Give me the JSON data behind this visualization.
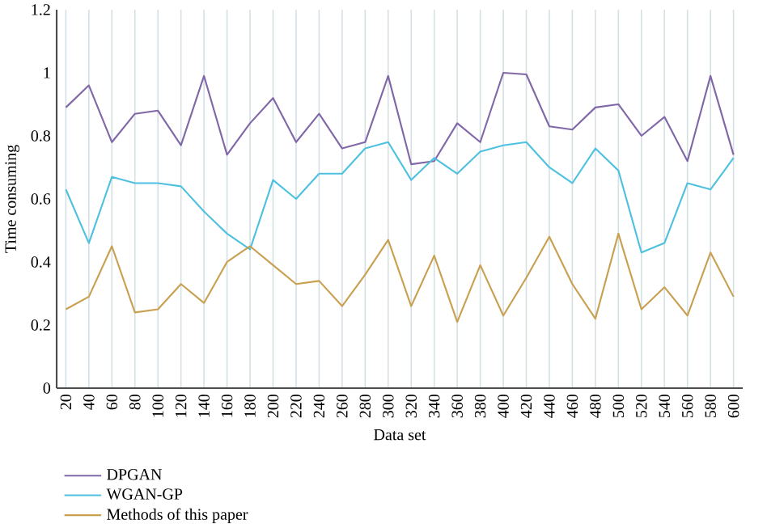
{
  "chart_data": {
    "type": "line",
    "xlabel": "Data set",
    "ylabel": "Time consuming",
    "categories": [
      "20",
      "40",
      "60",
      "80",
      "100",
      "120",
      "140",
      "160",
      "180",
      "200",
      "220",
      "240",
      "260",
      "280",
      "300",
      "320",
      "340",
      "360",
      "380",
      "400",
      "420",
      "440",
      "460",
      "480",
      "500",
      "520",
      "540",
      "560",
      "580",
      "600"
    ],
    "ylim": [
      0,
      1.2
    ],
    "yticks": [
      0,
      0.2,
      0.4,
      0.6,
      0.8,
      1,
      1.2
    ],
    "grid": "x",
    "legend": "bottom left",
    "marker": "none",
    "line_style": "solid",
    "series": [
      {
        "name": "DPGAN",
        "color": "#8068a8",
        "values": [
          0.89,
          0.96,
          0.78,
          0.87,
          0.88,
          0.77,
          0.99,
          0.74,
          0.84,
          0.92,
          0.78,
          0.87,
          0.76,
          0.78,
          0.99,
          0.71,
          0.72,
          0.84,
          0.78,
          1.0,
          0.995,
          0.83,
          0.82,
          0.89,
          0.9,
          0.8,
          0.86,
          0.72,
          0.99,
          0.74
        ]
      },
      {
        "name": "WGAN-GP",
        "color": "#4fc1e0",
        "values": [
          0.63,
          0.46,
          0.67,
          0.65,
          0.65,
          0.64,
          0.56,
          0.49,
          0.44,
          0.66,
          0.6,
          0.68,
          0.68,
          0.76,
          0.78,
          0.66,
          0.73,
          0.68,
          0.75,
          0.77,
          0.78,
          0.7,
          0.65,
          0.76,
          0.69,
          0.43,
          0.46,
          0.65,
          0.63,
          0.73
        ]
      },
      {
        "name": "Methods of this paper",
        "color": "#c8a050",
        "values": [
          0.25,
          0.29,
          0.45,
          0.24,
          0.25,
          0.33,
          0.27,
          0.4,
          0.45,
          0.39,
          0.33,
          0.34,
          0.26,
          0.36,
          0.47,
          0.26,
          0.42,
          0.21,
          0.39,
          0.23,
          0.35,
          0.48,
          0.33,
          0.22,
          0.49,
          0.25,
          0.32,
          0.23,
          0.43,
          0.29
        ]
      }
    ]
  }
}
